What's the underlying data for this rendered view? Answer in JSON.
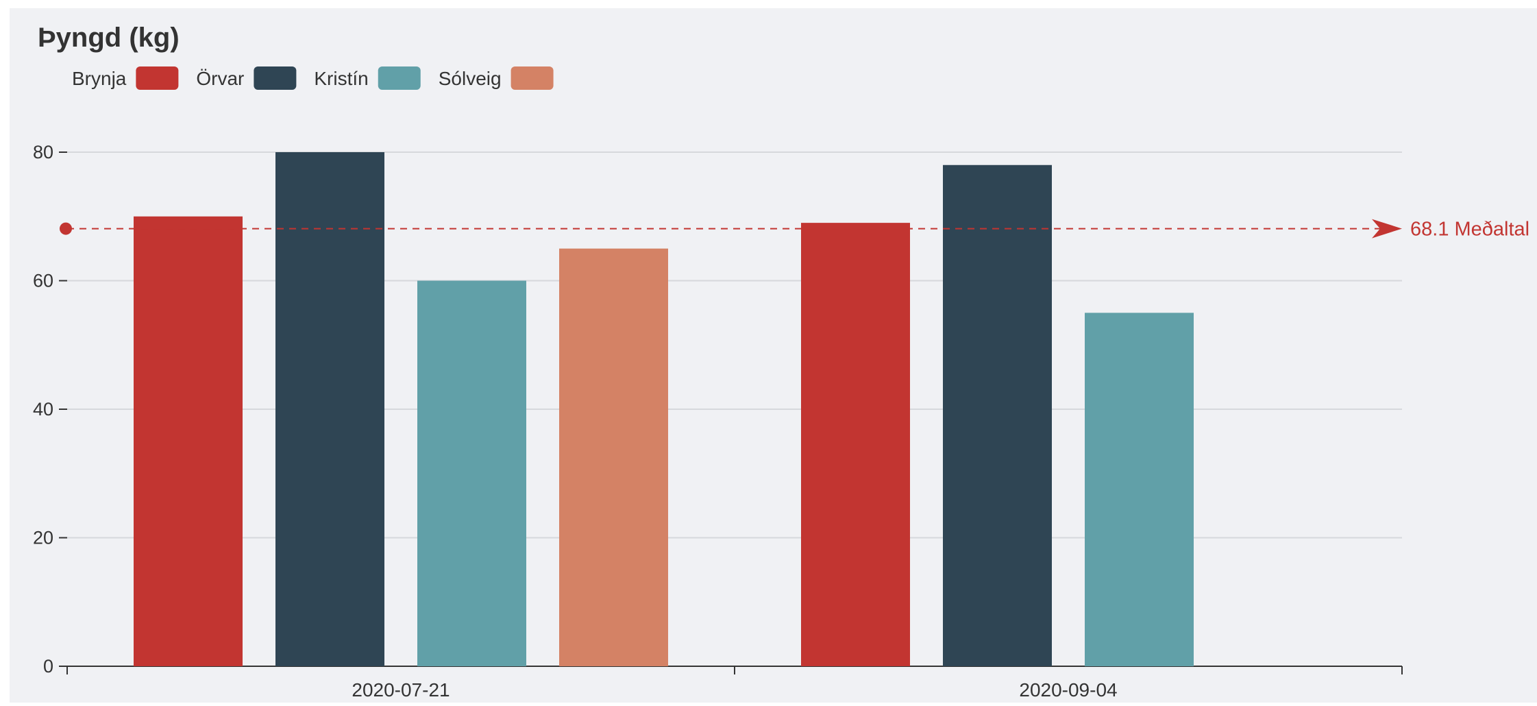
{
  "chart_data": {
    "type": "bar",
    "title": "Þyngd (kg)",
    "categories": [
      "2020-07-21",
      "2020-09-04"
    ],
    "series": [
      {
        "name": "Brynja",
        "color": "#c23531",
        "values": [
          70,
          69
        ]
      },
      {
        "name": "Örvar",
        "color": "#2f4554",
        "values": [
          80,
          78
        ]
      },
      {
        "name": "Kristín",
        "color": "#61a0a8",
        "values": [
          60,
          55
        ]
      },
      {
        "name": "Sólveig",
        "color": "#d48265",
        "values": [
          65,
          null
        ]
      }
    ],
    "ylim": [
      0,
      80
    ],
    "yticks": [
      0,
      20,
      40,
      60,
      80
    ],
    "grid": true,
    "legend_position": "top-left",
    "mark_line": {
      "value": 68.1,
      "label": "68.1 Meðaltal",
      "color": "#c23531",
      "style": "dashed"
    },
    "colors": {
      "background": "#f0f1f4",
      "gridline": "#d6d8dc",
      "axis": "#333333",
      "text": "#333333"
    }
  }
}
